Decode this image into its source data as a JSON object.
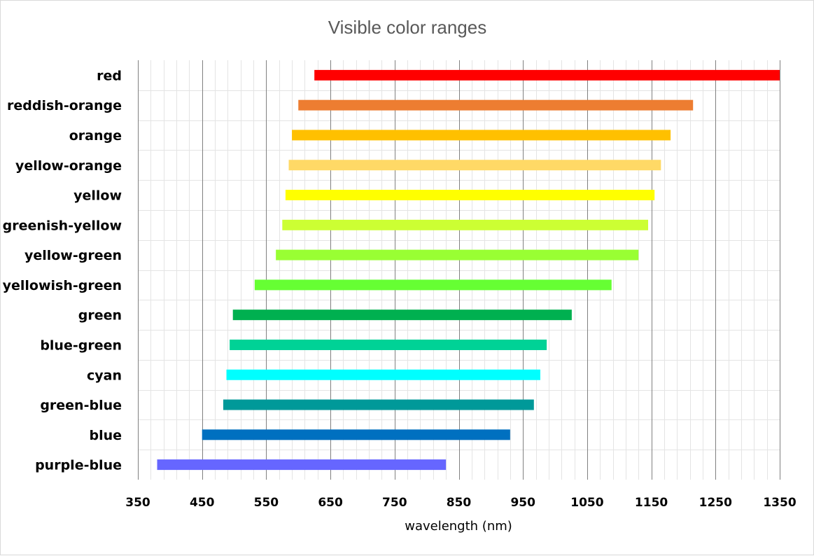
{
  "chart_data": {
    "type": "bar",
    "orientation": "horizontal-range",
    "title": "Visible color ranges",
    "xlabel": "wavelength (nm)",
    "ylabel": "",
    "xlim": [
      350,
      1350
    ],
    "xticks": [
      350,
      450,
      550,
      650,
      750,
      850,
      950,
      1050,
      1150,
      1250,
      1350
    ],
    "grid": "major and minor vertical gridlines",
    "legend": "none",
    "categories": [
      "red",
      "reddish-orange",
      "orange",
      "yellow-orange",
      "yellow",
      "greenish-yellow",
      "yellow-green",
      "yellowish-green",
      "green",
      "blue-green",
      "cyan",
      "green-blue",
      "blue",
      "purple-blue"
    ],
    "ranges": [
      {
        "start": 625,
        "end": 1350,
        "color": "#FF0000"
      },
      {
        "start": 600,
        "end": 1215,
        "color": "#ED7D31"
      },
      {
        "start": 590,
        "end": 1180,
        "color": "#FFC000"
      },
      {
        "start": 585,
        "end": 1165,
        "color": "#FFD966"
      },
      {
        "start": 580,
        "end": 1155,
        "color": "#FFFF00"
      },
      {
        "start": 575,
        "end": 1145,
        "color": "#CCFF33"
      },
      {
        "start": 565,
        "end": 1130,
        "color": "#99FF33"
      },
      {
        "start": 532,
        "end": 1088,
        "color": "#66FF33"
      },
      {
        "start": 498,
        "end": 1026,
        "color": "#00B050"
      },
      {
        "start": 493,
        "end": 987,
        "color": "#00D296"
      },
      {
        "start": 488,
        "end": 977,
        "color": "#00FFFF"
      },
      {
        "start": 483,
        "end": 967,
        "color": "#009999"
      },
      {
        "start": 450,
        "end": 930,
        "color": "#0070C0"
      },
      {
        "start": 380,
        "end": 830,
        "color": "#6666FF"
      }
    ],
    "colors": {
      "major_grid": "#808080",
      "minor_grid": "#e4e4e4",
      "row_separator": "#e4e4e4"
    }
  }
}
